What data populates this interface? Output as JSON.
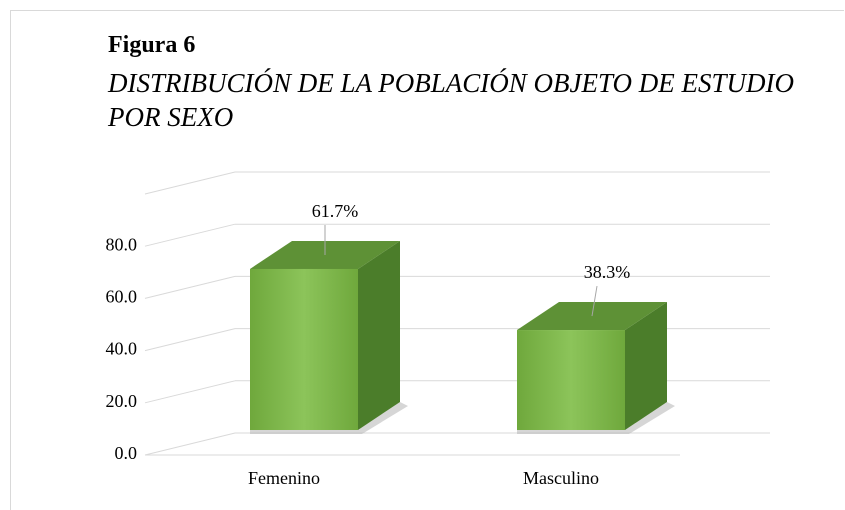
{
  "chart_data": {
    "type": "bar3d",
    "title": "Figura 6",
    "subtitle": "DISTRIBUCIÓN DE LA POBLACIÓN OBJETO DE ESTUDIO POR SEXO",
    "categories": [
      "Femenino",
      "Masculino"
    ],
    "values": [
      61.7,
      38.3
    ],
    "value_labels": [
      "61.7%",
      "38.3%"
    ],
    "color": "#7fb648",
    "ylim": [
      0,
      100
    ],
    "yticks": [
      {
        "value": 0,
        "label": "0.0"
      },
      {
        "value": 20,
        "label": "20.0"
      },
      {
        "value": 40,
        "label": "40.0"
      },
      {
        "value": 60,
        "label": "60.0"
      },
      {
        "value": 80,
        "label": "80.0"
      }
    ],
    "grid": true
  }
}
